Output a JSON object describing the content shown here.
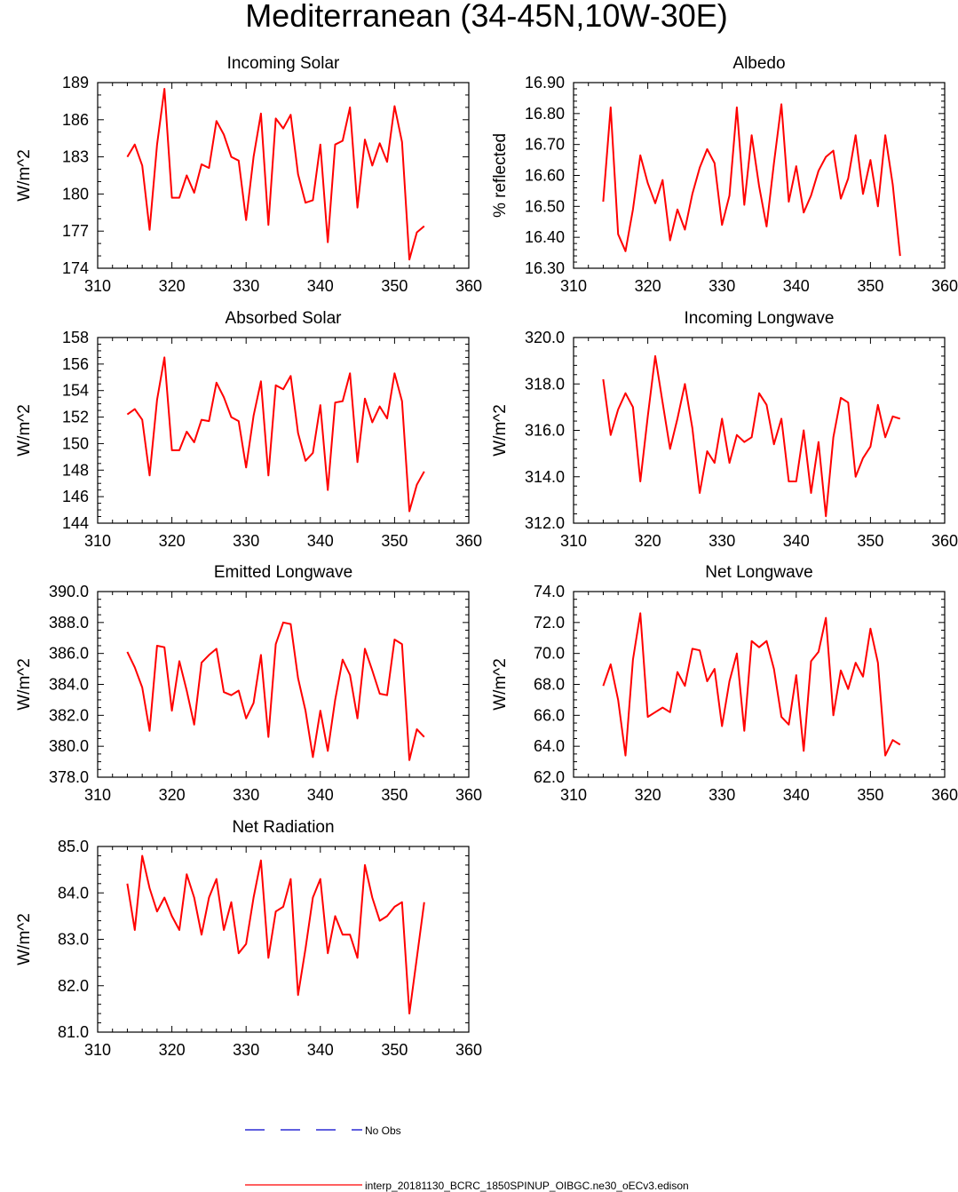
{
  "figure": {
    "title": "Mediterranean (34-45N,10W-30E)",
    "legend": {
      "obs_label": "No Obs",
      "obs_color": "#0000cc",
      "model_label": "interp_20181130_BCRC_1850SPINUP_OIBGC.ne30_oECv3.edison",
      "model_color": "#ff0000"
    }
  },
  "chart_data": [
    {
      "type": "line",
      "title": "Incoming Solar",
      "ylabel": "W/m^2",
      "xlim": [
        310,
        360
      ],
      "ylim": [
        174,
        189
      ],
      "xticks": [
        310,
        320,
        330,
        340,
        350,
        360
      ],
      "xtick_labels": [
        "310",
        "320",
        "330",
        "340",
        "350",
        "360"
      ],
      "yticks": [
        174,
        177,
        180,
        183,
        186,
        189
      ],
      "ytick_labels": [
        "174",
        "177",
        "180",
        "183",
        "186",
        "189"
      ],
      "yminor": 1,
      "grid": false,
      "series": [
        {
          "color": "#ff0000",
          "x": [
            314,
            315,
            316,
            317,
            318,
            319,
            320,
            321,
            322,
            323,
            324,
            325,
            326,
            327,
            328,
            329,
            330,
            331,
            332,
            333,
            334,
            335,
            336,
            337,
            338,
            339,
            340,
            341,
            342,
            343,
            344,
            345,
            346,
            347,
            348,
            349,
            350,
            351,
            352,
            353,
            354
          ],
          "y": [
            183.0,
            184.0,
            182.3,
            177.1,
            184.0,
            188.5,
            179.7,
            179.7,
            181.5,
            180.1,
            182.4,
            182.1,
            185.9,
            184.8,
            183.0,
            182.7,
            177.9,
            183.0,
            186.5,
            177.5,
            186.1,
            185.3,
            186.4,
            181.6,
            179.3,
            179.5,
            184.0,
            176.1,
            184.0,
            184.3,
            187.0,
            178.9,
            184.4,
            182.3,
            184.1,
            182.6,
            187.1,
            184.2,
            174.7,
            176.9,
            177.4
          ]
        }
      ]
    },
    {
      "type": "line",
      "title": "Albedo",
      "ylabel": "% reflected",
      "xlim": [
        310,
        360
      ],
      "ylim": [
        16.3,
        16.9
      ],
      "xticks": [
        310,
        320,
        330,
        340,
        350,
        360
      ],
      "xtick_labels": [
        "310",
        "320",
        "330",
        "340",
        "350",
        "360"
      ],
      "yticks": [
        16.3,
        16.4,
        16.5,
        16.6,
        16.7,
        16.8,
        16.9
      ],
      "ytick_labels": [
        "16.30",
        "16.40",
        "16.50",
        "16.60",
        "16.70",
        "16.80",
        "16.90"
      ],
      "yminor": 0.02,
      "grid": false,
      "series": [
        {
          "color": "#ff0000",
          "x": [
            314,
            315,
            316,
            317,
            318,
            319,
            320,
            321,
            322,
            323,
            324,
            325,
            326,
            327,
            328,
            329,
            330,
            331,
            332,
            333,
            334,
            335,
            336,
            337,
            338,
            339,
            340,
            341,
            342,
            343,
            344,
            345,
            346,
            347,
            348,
            349,
            350,
            351,
            352,
            353,
            354
          ],
          "y": [
            16.515,
            16.82,
            16.41,
            16.355,
            16.49,
            16.665,
            16.575,
            16.51,
            16.585,
            16.39,
            16.49,
            16.425,
            16.54,
            16.625,
            16.685,
            16.64,
            16.44,
            16.535,
            16.82,
            16.505,
            16.73,
            16.565,
            16.435,
            16.64,
            16.83,
            16.515,
            16.63,
            16.48,
            16.535,
            16.615,
            16.66,
            16.68,
            16.525,
            16.59,
            16.73,
            16.54,
            16.65,
            16.5,
            16.73,
            16.57,
            16.34
          ]
        }
      ]
    },
    {
      "type": "line",
      "title": "Absorbed Solar",
      "ylabel": "W/m^2",
      "xlim": [
        310,
        360
      ],
      "ylim": [
        144,
        158
      ],
      "xticks": [
        310,
        320,
        330,
        340,
        350,
        360
      ],
      "xtick_labels": [
        "310",
        "320",
        "330",
        "340",
        "350",
        "360"
      ],
      "yticks": [
        144,
        146,
        148,
        150,
        152,
        154,
        156,
        158
      ],
      "ytick_labels": [
        "144",
        "146",
        "148",
        "150",
        "152",
        "154",
        "156",
        "158"
      ],
      "yminor": 0.5,
      "grid": false,
      "series": [
        {
          "color": "#ff0000",
          "x": [
            314,
            315,
            316,
            317,
            318,
            319,
            320,
            321,
            322,
            323,
            324,
            325,
            326,
            327,
            328,
            329,
            330,
            331,
            332,
            333,
            334,
            335,
            336,
            337,
            338,
            339,
            340,
            341,
            342,
            343,
            344,
            345,
            346,
            347,
            348,
            349,
            350,
            351,
            352,
            353,
            354
          ],
          "y": [
            152.2,
            152.6,
            151.8,
            147.6,
            153.3,
            156.5,
            149.5,
            149.5,
            150.9,
            150.1,
            151.8,
            151.7,
            154.6,
            153.5,
            152.0,
            151.7,
            148.2,
            152.1,
            154.7,
            147.6,
            154.4,
            154.1,
            155.1,
            150.8,
            148.7,
            149.3,
            152.9,
            146.5,
            153.1,
            153.2,
            155.3,
            148.6,
            153.4,
            151.6,
            152.8,
            151.9,
            155.3,
            153.2,
            144.9,
            146.9,
            147.9
          ]
        }
      ]
    },
    {
      "type": "line",
      "title": "Incoming Longwave",
      "ylabel": "W/m^2",
      "xlim": [
        310,
        360
      ],
      "ylim": [
        312,
        320
      ],
      "xticks": [
        310,
        320,
        330,
        340,
        350,
        360
      ],
      "xtick_labels": [
        "310",
        "320",
        "330",
        "340",
        "350",
        "360"
      ],
      "yticks": [
        312,
        314,
        316,
        318,
        320
      ],
      "ytick_labels": [
        "312.0",
        "314.0",
        "316.0",
        "318.0",
        "320.0"
      ],
      "yminor": 0.4,
      "grid": false,
      "series": [
        {
          "color": "#ff0000",
          "x": [
            314,
            315,
            316,
            317,
            318,
            319,
            320,
            321,
            322,
            323,
            324,
            325,
            326,
            327,
            328,
            329,
            330,
            331,
            332,
            333,
            334,
            335,
            336,
            337,
            338,
            339,
            340,
            341,
            342,
            343,
            344,
            345,
            346,
            347,
            348,
            349,
            350,
            351,
            352,
            353,
            354
          ],
          "y": [
            318.2,
            315.8,
            316.9,
            317.6,
            317.0,
            313.8,
            316.6,
            319.2,
            317.2,
            315.2,
            316.5,
            318.0,
            316.1,
            313.3,
            315.1,
            314.6,
            316.5,
            314.6,
            315.8,
            315.5,
            315.7,
            317.6,
            317.1,
            315.4,
            316.5,
            313.8,
            313.8,
            316.0,
            313.3,
            315.5,
            312.3,
            315.7,
            317.4,
            317.2,
            314.0,
            314.8,
            315.3,
            317.1,
            315.7,
            316.6,
            316.5
          ]
        }
      ]
    },
    {
      "type": "line",
      "title": "Emitted Longwave",
      "ylabel": "W/m^2",
      "xlim": [
        310,
        360
      ],
      "ylim": [
        378,
        390
      ],
      "xticks": [
        310,
        320,
        330,
        340,
        350,
        360
      ],
      "xtick_labels": [
        "310",
        "320",
        "330",
        "340",
        "350",
        "360"
      ],
      "yticks": [
        378,
        380,
        382,
        384,
        386,
        388,
        390
      ],
      "ytick_labels": [
        "378.0",
        "380.0",
        "382.0",
        "384.0",
        "386.0",
        "388.0",
        "390.0"
      ],
      "yminor": 0.5,
      "grid": false,
      "series": [
        {
          "color": "#ff0000",
          "x": [
            314,
            315,
            316,
            317,
            318,
            319,
            320,
            321,
            322,
            323,
            324,
            325,
            326,
            327,
            328,
            329,
            330,
            331,
            332,
            333,
            334,
            335,
            336,
            337,
            338,
            339,
            340,
            341,
            342,
            343,
            344,
            345,
            346,
            347,
            348,
            349,
            350,
            351,
            352,
            353,
            354
          ],
          "y": [
            386.1,
            385.1,
            383.8,
            381.0,
            386.5,
            386.4,
            382.3,
            385.5,
            383.6,
            381.4,
            385.4,
            385.9,
            386.3,
            383.5,
            383.3,
            383.6,
            381.8,
            382.8,
            385.9,
            380.6,
            386.6,
            388.0,
            387.9,
            384.4,
            382.3,
            379.3,
            382.3,
            379.7,
            383.0,
            385.6,
            384.6,
            381.8,
            386.3,
            384.9,
            383.4,
            383.3,
            386.9,
            386.6,
            379.1,
            381.1,
            380.6
          ]
        }
      ]
    },
    {
      "type": "line",
      "title": "Net Longwave",
      "ylabel": "W/m^2",
      "xlim": [
        310,
        360
      ],
      "ylim": [
        62,
        74
      ],
      "xticks": [
        310,
        320,
        330,
        340,
        350,
        360
      ],
      "xtick_labels": [
        "310",
        "320",
        "330",
        "340",
        "350",
        "360"
      ],
      "yticks": [
        62,
        64,
        66,
        68,
        70,
        72,
        74
      ],
      "ytick_labels": [
        "62.0",
        "64.0",
        "66.0",
        "68.0",
        "70.0",
        "72.0",
        "74.0"
      ],
      "yminor": 0.5,
      "grid": false,
      "series": [
        {
          "color": "#ff0000",
          "x": [
            314,
            315,
            316,
            317,
            318,
            319,
            320,
            321,
            322,
            323,
            324,
            325,
            326,
            327,
            328,
            329,
            330,
            331,
            332,
            333,
            334,
            335,
            336,
            337,
            338,
            339,
            340,
            341,
            342,
            343,
            344,
            345,
            346,
            347,
            348,
            349,
            350,
            351,
            352,
            353,
            354
          ],
          "y": [
            67.9,
            69.3,
            67.0,
            63.4,
            69.6,
            72.6,
            65.9,
            66.2,
            66.5,
            66.2,
            68.8,
            67.9,
            70.3,
            70.2,
            68.2,
            69.0,
            65.3,
            68.2,
            70.0,
            65.0,
            70.8,
            70.4,
            70.8,
            69.0,
            65.9,
            65.4,
            68.6,
            63.7,
            69.5,
            70.1,
            72.3,
            66.0,
            68.9,
            67.7,
            69.4,
            68.5,
            71.6,
            69.4,
            63.4,
            64.4,
            64.1
          ]
        }
      ]
    },
    {
      "type": "line",
      "title": "Net Radiation",
      "ylabel": "W/m^2",
      "xlim": [
        310,
        360
      ],
      "ylim": [
        81,
        85
      ],
      "xticks": [
        310,
        320,
        330,
        340,
        350,
        360
      ],
      "xtick_labels": [
        "310",
        "320",
        "330",
        "340",
        "350",
        "360"
      ],
      "yticks": [
        81,
        82,
        83,
        84,
        85
      ],
      "ytick_labels": [
        "81.0",
        "82.0",
        "83.0",
        "84.0",
        "85.0"
      ],
      "yminor": 0.2,
      "grid": false,
      "series": [
        {
          "color": "#ff0000",
          "x": [
            314,
            315,
            316,
            317,
            318,
            319,
            320,
            321,
            322,
            323,
            324,
            325,
            326,
            327,
            328,
            329,
            330,
            331,
            332,
            333,
            334,
            335,
            336,
            337,
            338,
            339,
            340,
            341,
            342,
            343,
            344,
            345,
            346,
            347,
            348,
            349,
            350,
            351,
            352,
            353,
            354
          ],
          "y": [
            84.2,
            83.2,
            84.8,
            84.1,
            83.6,
            83.9,
            83.5,
            83.2,
            84.4,
            83.9,
            83.1,
            83.9,
            84.3,
            83.2,
            83.8,
            82.7,
            82.9,
            83.9,
            84.7,
            82.6,
            83.6,
            83.7,
            84.3,
            81.8,
            82.8,
            83.9,
            84.3,
            82.7,
            83.5,
            83.1,
            83.1,
            82.6,
            84.6,
            83.9,
            83.4,
            83.5,
            83.7,
            83.8,
            81.4,
            82.6,
            83.8
          ]
        }
      ]
    }
  ]
}
